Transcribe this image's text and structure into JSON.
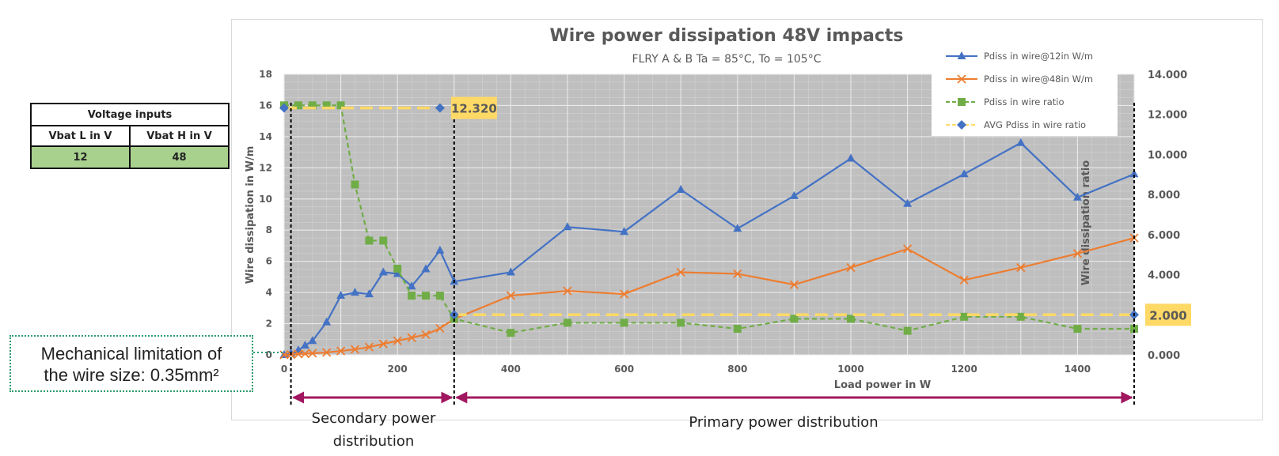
{
  "voltage_table": {
    "title": "Voltage inputs",
    "headers": [
      "Vbat L in V",
      "Vbat H in V"
    ],
    "values": [
      "12",
      "48"
    ]
  },
  "mechanical_note": {
    "line1": "Mechanical limitation of",
    "line2": "the wire size: 0.35mm²"
  },
  "regions": {
    "secondary_line1": "Secondary power",
    "secondary_line2": "distribution",
    "primary": "Primary power distribution"
  },
  "callouts": {
    "left": "12.320",
    "right": "2.000"
  },
  "colors": {
    "series_12v": "#4472c4",
    "series_48v": "#ed7d31",
    "series_ratio": "#70ad47",
    "series_avg": "#ffd966",
    "plot_bg": "#bfbfbf",
    "callout_bg": "#ffd966",
    "arrow": "#a0175f"
  },
  "chart_data": {
    "type": "line",
    "title": "Wire power dissipation 48V impacts",
    "subtitle": "FLRY A & B Ta = 85°C, To = 105°C",
    "xlabel": "Load power in W",
    "ylabel": "Wire dissipation in W/m",
    "y2label": "Wire dissipation ratio",
    "xlim": [
      0,
      1500
    ],
    "ylim": [
      0,
      18
    ],
    "y2lim": [
      0,
      14
    ],
    "x_ticks": [
      "0",
      "200",
      "400",
      "600",
      "800",
      "1000",
      "1200",
      "1400"
    ],
    "y_ticks": [
      "0",
      "2",
      "4",
      "6",
      "8",
      "10",
      "12",
      "14",
      "16",
      "18"
    ],
    "y2_ticks": [
      "0.000",
      "2.000",
      "4.000",
      "6.000",
      "8.000",
      "10.000",
      "12.000",
      "14.000"
    ],
    "grid": true,
    "legend_position": "top-right",
    "series": [
      {
        "name": "Pdiss in wire@12in W/m",
        "axis": "left",
        "marker": "triangle",
        "dash": "solid",
        "color": "#4472c4",
        "x": [
          0,
          12,
          25,
          37,
          50,
          75,
          100,
          125,
          150,
          175,
          200,
          225,
          250,
          275,
          300,
          400,
          500,
          600,
          700,
          800,
          900,
          1000,
          1100,
          1200,
          1300,
          1400,
          1500
        ],
        "y": [
          0,
          0.1,
          0.3,
          0.6,
          0.9,
          2.1,
          3.8,
          4.0,
          3.9,
          5.3,
          5.2,
          4.4,
          5.5,
          6.7,
          4.7,
          5.3,
          8.2,
          7.9,
          10.6,
          8.1,
          10.2,
          12.6,
          9.7,
          11.6,
          13.6,
          10.1,
          11.6
        ]
      },
      {
        "name": "Pdiss in wire@48in W/m",
        "axis": "left",
        "marker": "x",
        "dash": "solid",
        "color": "#ed7d31",
        "x": [
          0,
          12,
          25,
          37,
          50,
          75,
          100,
          125,
          150,
          175,
          200,
          225,
          250,
          275,
          300,
          400,
          500,
          600,
          700,
          800,
          900,
          1000,
          1100,
          1200,
          1300,
          1400,
          1500
        ],
        "y": [
          0,
          0.02,
          0.05,
          0.07,
          0.1,
          0.15,
          0.25,
          0.35,
          0.5,
          0.7,
          0.9,
          1.1,
          1.3,
          1.7,
          2.3,
          3.8,
          4.1,
          3.9,
          5.3,
          5.2,
          4.5,
          5.6,
          6.8,
          4.8,
          5.6,
          6.5,
          7.5
        ]
      },
      {
        "name": "Pdiss  in wire ratio",
        "axis": "right",
        "marker": "square",
        "dash": "dashed",
        "color": "#70ad47",
        "x": [
          0,
          25,
          50,
          75,
          100,
          125,
          150,
          175,
          200,
          225,
          250,
          275,
          300,
          400,
          500,
          600,
          700,
          800,
          900,
          1000,
          1100,
          1200,
          1300,
          1400,
          1500
        ],
        "y": [
          12.45,
          12.45,
          12.45,
          12.45,
          12.45,
          8.5,
          5.7,
          5.7,
          4.3,
          2.95,
          2.95,
          2.95,
          1.8,
          1.1,
          1.6,
          1.6,
          1.6,
          1.3,
          1.8,
          1.8,
          1.2,
          1.9,
          1.9,
          1.3,
          1.3
        ]
      },
      {
        "name": "AVG Pdiss in wire ratio",
        "axis": "right",
        "marker": "diamond",
        "dash": "dashed",
        "color": "#ffd966",
        "segments": [
          {
            "x": [
              0,
              275
            ],
            "y": [
              12.32,
              12.32
            ]
          },
          {
            "x": [
              300,
              1500
            ],
            "y": [
              2.0,
              2.0
            ]
          }
        ]
      }
    ],
    "annotations": [
      {
        "x": 275,
        "y2": 12.32,
        "text": "12.320"
      },
      {
        "x": 1500,
        "y2": 2.0,
        "text": "2.000"
      }
    ],
    "region_boundaries_x": [
      12,
      300,
      1500
    ]
  }
}
